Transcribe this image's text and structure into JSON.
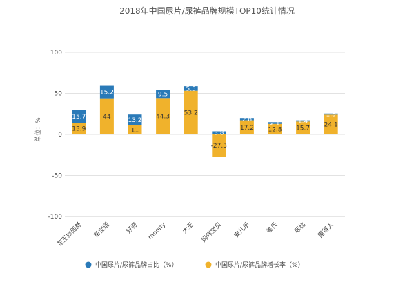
{
  "chart_data": {
    "type": "bar",
    "title": "2018年中国尿片/尿裤品牌规模TOP10统计情况",
    "ylabel": "单位：%",
    "ylim": [
      -100,
      100
    ],
    "yticks": [
      100,
      50,
      0,
      -50,
      -100
    ],
    "categories": [
      "花王妙而舒",
      "帮宝适",
      "好奇",
      "moony",
      "大王",
      "妈咪宝贝",
      "安儿乐",
      "雀氏",
      "菲比",
      "露得人"
    ],
    "series": [
      {
        "name": "中国尿片/尿裤品牌占比（%）",
        "color": "#2a7ab8",
        "values": [
          15.7,
          15.2,
          13.2,
          9.5,
          5.5,
          3.8,
          2.8,
          2.1,
          1.4,
          1.3
        ],
        "labels": [
          "15.7",
          "15.2",
          "13.2",
          "9.5",
          "5.5",
          "3.8",
          "2.8",
          "2.1",
          "1.4",
          "1.3"
        ]
      },
      {
        "name": "中国尿片/尿裤品牌增长率（%）",
        "color": "#f0b22c",
        "values": [
          13.9,
          44,
          11,
          44.3,
          53.2,
          -27.3,
          17.2,
          12.8,
          15.7,
          24.1
        ],
        "labels": [
          "13.9",
          "44",
          "11",
          "44.3",
          "53.2",
          "-27.3",
          "17.2",
          "12.8",
          "15.7",
          "24.1"
        ]
      }
    ],
    "grid": true,
    "legend_position": "bottom"
  }
}
